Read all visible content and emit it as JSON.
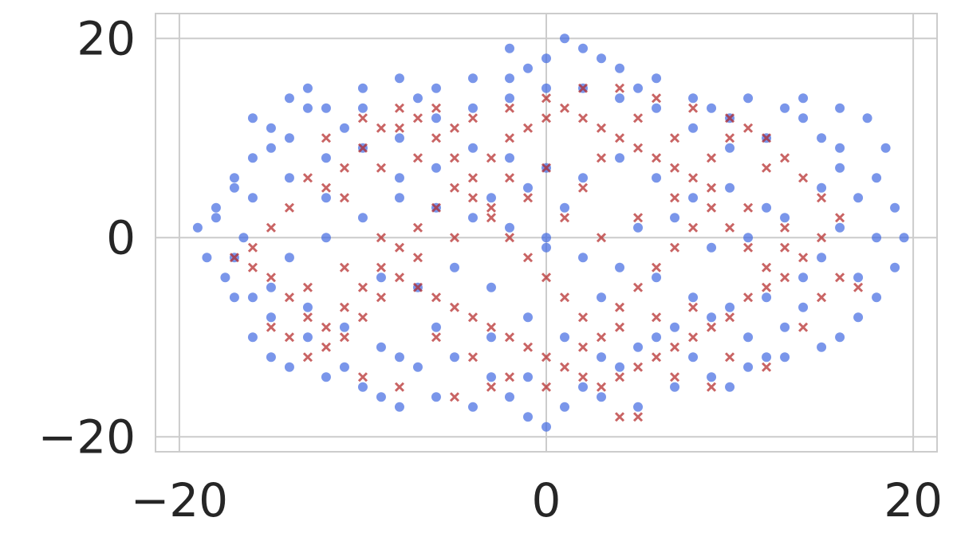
{
  "chart_data": {
    "type": "scatter",
    "title": "",
    "xlabel": "",
    "ylabel": "",
    "xlim": [
      -21.3,
      21.3
    ],
    "ylim": [
      -21.5,
      22.5
    ],
    "grid": true,
    "legend": "none",
    "x_ticks": [
      {
        "value": -20,
        "label": "−20"
      },
      {
        "value": 0,
        "label": "0"
      },
      {
        "value": 20,
        "label": "20"
      }
    ],
    "y_ticks": [
      {
        "value": -20,
        "label": "−20"
      },
      {
        "value": 0,
        "label": "0"
      },
      {
        "value": 20,
        "label": "20"
      }
    ],
    "series": [
      {
        "marker": "circle",
        "color": "#4169e1",
        "points": [
          [
            -18.5,
            -2
          ],
          [
            -17.5,
            -4
          ],
          [
            -19,
            1
          ],
          [
            -18,
            3
          ],
          [
            -17,
            5
          ],
          [
            -16,
            8
          ],
          [
            -15,
            11
          ],
          [
            -14,
            14
          ],
          [
            -13,
            15
          ],
          [
            -12,
            13
          ],
          [
            -11,
            11
          ],
          [
            -16.5,
            0
          ],
          [
            -17,
            -6
          ],
          [
            -16,
            -10
          ],
          [
            -15,
            -12
          ],
          [
            -14,
            -13
          ],
          [
            -12,
            -14
          ],
          [
            -10,
            -15
          ],
          [
            -9,
            -16
          ],
          [
            -8,
            -17
          ],
          [
            -6,
            -16
          ],
          [
            -4,
            -17
          ],
          [
            -2,
            -16
          ],
          [
            -1,
            -18
          ],
          [
            1,
            -17
          ],
          [
            3,
            -16
          ],
          [
            5,
            -17
          ],
          [
            7,
            -15
          ],
          [
            9,
            -14
          ],
          [
            11,
            -13
          ],
          [
            13,
            -12
          ],
          [
            15,
            -11
          ],
          [
            16,
            -10
          ],
          [
            17,
            -8
          ],
          [
            18,
            -6
          ],
          [
            19,
            -3
          ],
          [
            19.5,
            0
          ],
          [
            19,
            3
          ],
          [
            18,
            6
          ],
          [
            18.5,
            9
          ],
          [
            17.5,
            12
          ],
          [
            16,
            13
          ],
          [
            14,
            12
          ],
          [
            12,
            10
          ],
          [
            10,
            12
          ],
          [
            8,
            14
          ],
          [
            6,
            16
          ],
          [
            4,
            17
          ],
          [
            2,
            19
          ],
          [
            1,
            20
          ],
          [
            0,
            18
          ],
          [
            -1,
            17
          ],
          [
            -2,
            16
          ],
          [
            -4,
            16
          ],
          [
            -6,
            15
          ],
          [
            -8,
            16
          ],
          [
            -10,
            15
          ],
          [
            -13,
            13
          ],
          [
            -15,
            9
          ],
          [
            -17,
            6
          ],
          [
            -18,
            2
          ],
          [
            -16,
            4
          ],
          [
            -14,
            6
          ],
          [
            -12,
            8
          ],
          [
            -10,
            9
          ],
          [
            -8,
            10
          ],
          [
            -6,
            12
          ],
          [
            -4,
            13
          ],
          [
            -2,
            14
          ],
          [
            0,
            15
          ],
          [
            2,
            15
          ],
          [
            4,
            14
          ],
          [
            6,
            13
          ],
          [
            9,
            13
          ],
          [
            11,
            14
          ],
          [
            13,
            13
          ],
          [
            15,
            10
          ],
          [
            16,
            7
          ],
          [
            17,
            4
          ],
          [
            16,
            1
          ],
          [
            15,
            -2
          ],
          [
            14,
            -4
          ],
          [
            12,
            -6
          ],
          [
            10,
            -7
          ],
          [
            8,
            -6
          ],
          [
            6,
            -4
          ],
          [
            4,
            -3
          ],
          [
            2,
            -2
          ],
          [
            0,
            -1
          ],
          [
            -2,
            1
          ],
          [
            -4,
            2
          ],
          [
            -6,
            3
          ],
          [
            -8,
            4
          ],
          [
            -10,
            2
          ],
          [
            -12,
            0
          ],
          [
            -14,
            -2
          ],
          [
            -15,
            -5
          ],
          [
            -13,
            -7
          ],
          [
            -11,
            -9
          ],
          [
            -9,
            -11
          ],
          [
            -7,
            -13
          ],
          [
            -5,
            -12
          ],
          [
            -3,
            -10
          ],
          [
            -1,
            -8
          ],
          [
            1,
            -10
          ],
          [
            3,
            -12
          ],
          [
            5,
            -11
          ],
          [
            7,
            -9
          ],
          [
            9,
            -8
          ],
          [
            11,
            -10
          ],
          [
            13,
            -9
          ],
          [
            14,
            -7
          ],
          [
            12,
            3
          ],
          [
            10,
            5
          ],
          [
            8,
            4
          ],
          [
            6,
            6
          ],
          [
            4,
            8
          ],
          [
            2,
            6
          ],
          [
            0,
            7
          ],
          [
            -2,
            8
          ],
          [
            -4,
            9
          ],
          [
            -6,
            7
          ],
          [
            -8,
            6
          ],
          [
            -3,
            4
          ],
          [
            -5,
            -3
          ],
          [
            -7,
            -5
          ],
          [
            -9,
            -4
          ],
          [
            5,
            1
          ],
          [
            7,
            2
          ],
          [
            9,
            -1
          ],
          [
            11,
            0
          ],
          [
            13,
            2
          ],
          [
            -16,
            12
          ],
          [
            -14,
            10
          ],
          [
            -12,
            4
          ],
          [
            -17,
            -2
          ],
          [
            15,
            5
          ],
          [
            18,
            0
          ],
          [
            17,
            -4
          ],
          [
            -1,
            -14
          ],
          [
            2,
            -15
          ],
          [
            4,
            -13
          ],
          [
            -3,
            -14
          ],
          [
            0,
            -19
          ],
          [
            -11,
            -13
          ],
          [
            -13,
            -10
          ],
          [
            10,
            -15
          ],
          [
            12,
            -12
          ],
          [
            16,
            9
          ],
          [
            14,
            14
          ],
          [
            -10,
            13
          ],
          [
            -7,
            14
          ],
          [
            3,
            18
          ],
          [
            -2,
            19
          ],
          [
            5,
            15
          ],
          [
            8,
            11
          ],
          [
            10,
            9
          ],
          [
            -15,
            -8
          ],
          [
            -16,
            -6
          ],
          [
            0,
            0
          ],
          [
            1,
            3
          ],
          [
            -1,
            5
          ],
          [
            3,
            -6
          ],
          [
            -3,
            -5
          ],
          [
            6,
            -10
          ],
          [
            -6,
            -9
          ],
          [
            8,
            -12
          ],
          [
            -8,
            -12
          ]
        ]
      },
      {
        "marker": "x",
        "color": "#b22222",
        "points": [
          [
            -17,
            -2
          ],
          [
            -16,
            -3
          ],
          [
            -15,
            -4
          ],
          [
            -14,
            -6
          ],
          [
            -13,
            -8
          ],
          [
            -12,
            -9
          ],
          [
            -11,
            -7
          ],
          [
            -10,
            -5
          ],
          [
            -9,
            -3
          ],
          [
            -8,
            -1
          ],
          [
            -7,
            1
          ],
          [
            -6,
            3
          ],
          [
            -5,
            5
          ],
          [
            -4,
            6
          ],
          [
            -3,
            8
          ],
          [
            -2,
            10
          ],
          [
            -1,
            11
          ],
          [
            0,
            12
          ],
          [
            1,
            13
          ],
          [
            2,
            12
          ],
          [
            3,
            11
          ],
          [
            4,
            10
          ],
          [
            5,
            9
          ],
          [
            6,
            8
          ],
          [
            7,
            7
          ],
          [
            8,
            6
          ],
          [
            9,
            8
          ],
          [
            10,
            10
          ],
          [
            11,
            11
          ],
          [
            12,
            10
          ],
          [
            13,
            8
          ],
          [
            14,
            6
          ],
          [
            15,
            4
          ],
          [
            16,
            2
          ],
          [
            15,
            0
          ],
          [
            14,
            -2
          ],
          [
            13,
            -4
          ],
          [
            12,
            -5
          ],
          [
            11,
            -6
          ],
          [
            10,
            -8
          ],
          [
            9,
            -9
          ],
          [
            8,
            -10
          ],
          [
            7,
            -11
          ],
          [
            6,
            -12
          ],
          [
            5,
            -13
          ],
          [
            4,
            -14
          ],
          [
            3,
            -15
          ],
          [
            2,
            -14
          ],
          [
            1,
            -13
          ],
          [
            0,
            -12
          ],
          [
            -1,
            -11
          ],
          [
            -2,
            -10
          ],
          [
            -3,
            -9
          ],
          [
            -4,
            -8
          ],
          [
            -5,
            -7
          ],
          [
            -6,
            -6
          ],
          [
            -7,
            -5
          ],
          [
            -8,
            -4
          ],
          [
            -9,
            -6
          ],
          [
            -10,
            -8
          ],
          [
            -11,
            -10
          ],
          [
            -12,
            -11
          ],
          [
            -13,
            -12
          ],
          [
            -14,
            -10
          ],
          [
            -15,
            -9
          ],
          [
            -12,
            5
          ],
          [
            -11,
            7
          ],
          [
            -10,
            9
          ],
          [
            -9,
            11
          ],
          [
            -8,
            13
          ],
          [
            -7,
            12
          ],
          [
            -6,
            10
          ],
          [
            -5,
            8
          ],
          [
            -4,
            4
          ],
          [
            -3,
            2
          ],
          [
            -2,
            0
          ],
          [
            -1,
            -2
          ],
          [
            0,
            -4
          ],
          [
            1,
            -6
          ],
          [
            2,
            -8
          ],
          [
            3,
            -10
          ],
          [
            4,
            -7
          ],
          [
            5,
            -5
          ],
          [
            6,
            -3
          ],
          [
            7,
            -1
          ],
          [
            8,
            1
          ],
          [
            9,
            3
          ],
          [
            10,
            1
          ],
          [
            11,
            -1
          ],
          [
            12,
            -3
          ],
          [
            13,
            -1
          ],
          [
            12,
            7
          ],
          [
            10,
            12
          ],
          [
            8,
            13
          ],
          [
            6,
            14
          ],
          [
            4,
            15
          ],
          [
            2,
            15
          ],
          [
            0,
            14
          ],
          [
            -2,
            13
          ],
          [
            -4,
            12
          ],
          [
            -6,
            13
          ],
          [
            -8,
            11
          ],
          [
            -10,
            12
          ],
          [
            -12,
            10
          ],
          [
            -13,
            6
          ],
          [
            -14,
            3
          ],
          [
            -15,
            1
          ],
          [
            -16,
            -1
          ],
          [
            -9,
            0
          ],
          [
            -7,
            -2
          ],
          [
            -5,
            0
          ],
          [
            -3,
            3
          ],
          [
            -1,
            4
          ],
          [
            1,
            2
          ],
          [
            3,
            0
          ],
          [
            5,
            2
          ],
          [
            7,
            4
          ],
          [
            9,
            5
          ],
          [
            11,
            3
          ],
          [
            13,
            1
          ],
          [
            -11,
            -3
          ],
          [
            -13,
            -5
          ],
          [
            -6,
            -10
          ],
          [
            -4,
            -12
          ],
          [
            -2,
            -14
          ],
          [
            0,
            -15
          ],
          [
            2,
            -11
          ],
          [
            4,
            -9
          ],
          [
            6,
            -8
          ],
          [
            8,
            -7
          ],
          [
            10,
            -12
          ],
          [
            12,
            -13
          ],
          [
            14,
            -9
          ],
          [
            -8,
            -15
          ],
          [
            -10,
            -14
          ],
          [
            -5,
            -16
          ],
          [
            -3,
            -15
          ],
          [
            7,
            -14
          ],
          [
            9,
            -15
          ],
          [
            5,
            -18
          ],
          [
            4,
            -18
          ],
          [
            0,
            7
          ],
          [
            2,
            5
          ],
          [
            -2,
            6
          ],
          [
            3,
            8
          ],
          [
            -5,
            11
          ],
          [
            5,
            12
          ],
          [
            7,
            10
          ],
          [
            -7,
            8
          ],
          [
            -9,
            7
          ],
          [
            -11,
            4
          ],
          [
            15,
            -6
          ],
          [
            16,
            -4
          ],
          [
            17,
            -5
          ]
        ]
      }
    ]
  }
}
